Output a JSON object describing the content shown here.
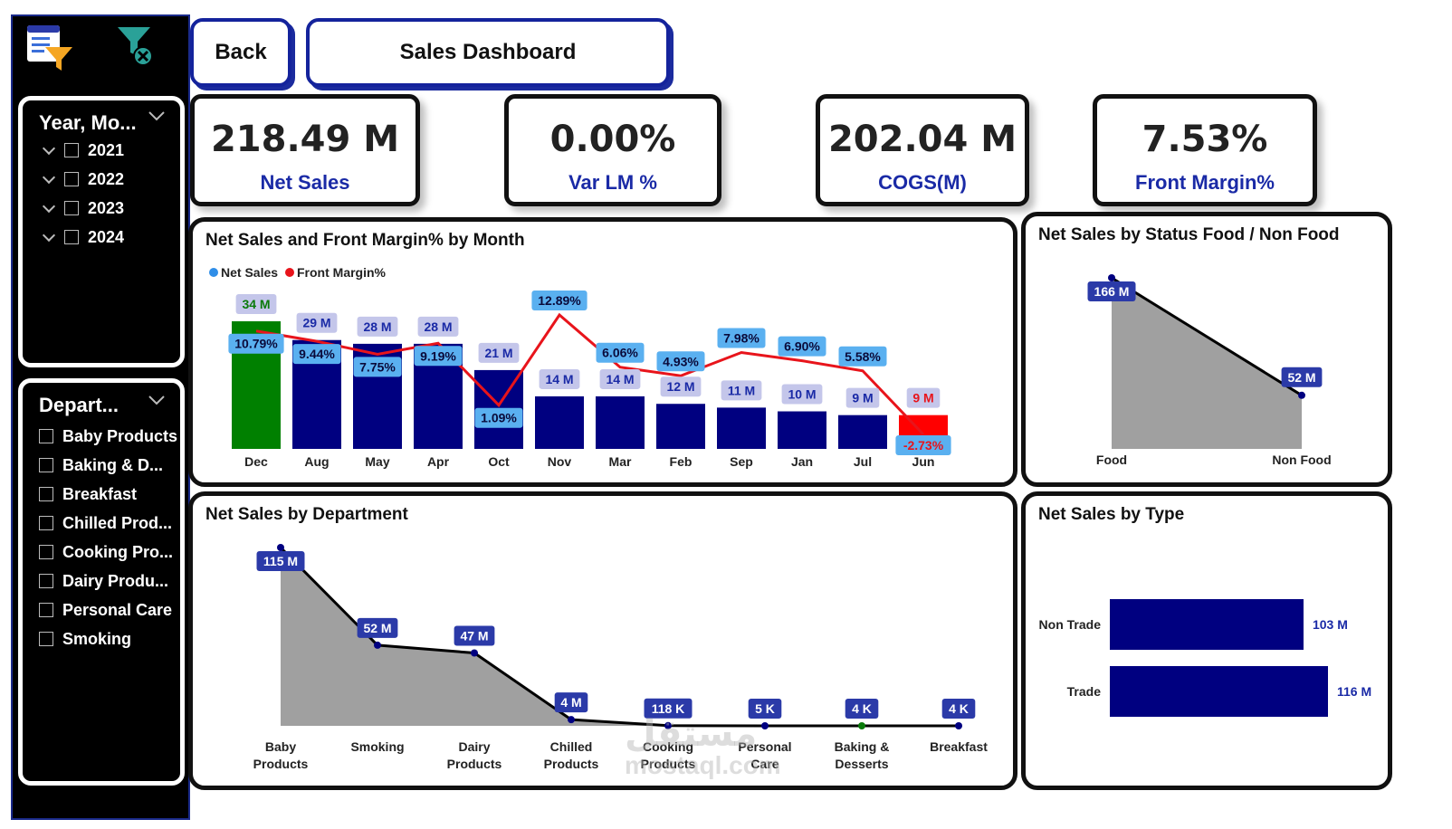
{
  "header": {
    "back_label": "Back",
    "title": "Sales Dashboard"
  },
  "sidebar": {
    "icons": [
      "report-filter-icon",
      "clear-filter-icon"
    ],
    "year_slicer": {
      "title": "Year, Mo...",
      "items": [
        "2021",
        "2022",
        "2023",
        "2024"
      ]
    },
    "dept_slicer": {
      "title": "Depart...",
      "items": [
        "Baby Products",
        "Baking & D...",
        "Breakfast",
        "Chilled Prod...",
        "Cooking Pro...",
        "Dairy Produ...",
        "Personal Care",
        "Smoking"
      ]
    }
  },
  "kpis": [
    {
      "value": "218.49 M",
      "label": "Net Sales"
    },
    {
      "value": "0.00%",
      "label": "Var LM %"
    },
    {
      "value": "202.04 M",
      "label": "COGS(M)"
    },
    {
      "value": "7.53%",
      "label": "Front Margin%"
    }
  ],
  "colors": {
    "bar": "#000080",
    "bar_max": "#008000",
    "bar_min": "#ff0000",
    "margin_line": "#e8141b",
    "area": "#a0a0a0",
    "label_bg": "#2b3aa8",
    "accent": "#1a2aa6"
  },
  "watermark": {
    "line1": "مستقل",
    "line2": "mostaql.com"
  },
  "chart_data": [
    {
      "type": "bar",
      "title": "Net Sales and Front Margin% by Month",
      "legend": [
        "Net Sales",
        "Front Margin%"
      ],
      "legend_position": "top-left",
      "categories": [
        "Dec",
        "Aug",
        "May",
        "Apr",
        "Oct",
        "Nov",
        "Mar",
        "Feb",
        "Sep",
        "Jan",
        "Jul",
        "Jun"
      ],
      "series": [
        {
          "name": "Net Sales",
          "values": [
            34,
            29,
            28,
            28,
            21,
            14,
            14,
            12,
            11,
            10,
            9,
            9
          ],
          "labels": [
            "34 M",
            "29 M",
            "28 M",
            "28 M",
            "21 M",
            "14 M",
            "14 M",
            "12 M",
            "11 M",
            "10 M",
            "9 M",
            "9 M"
          ]
        },
        {
          "name": "Front Margin%",
          "values": [
            10.79,
            9.44,
            7.75,
            9.19,
            1.09,
            12.89,
            6.06,
            4.93,
            7.98,
            6.9,
            5.58,
            -2.73
          ],
          "labels": [
            "10.79%",
            "9.44%",
            "7.75%",
            "9.19%",
            "1.09%",
            "12.89%",
            "6.06%",
            "4.93%",
            "7.98%",
            "6.90%",
            "5.58%",
            "-2.73%"
          ]
        }
      ]
    },
    {
      "type": "area",
      "title": "Net Sales by Status Food / Non Food",
      "categories": [
        "Food",
        "Non Food"
      ],
      "values": [
        166,
        52
      ],
      "labels": [
        "166 M",
        "52 M"
      ]
    },
    {
      "type": "area",
      "title": "Net Sales by Department",
      "categories": [
        "Baby Products",
        "Smoking",
        "Dairy Products",
        "Chilled Products",
        "Cooking Products",
        "Personal Care",
        "Baking & Desserts",
        "Breakfast"
      ],
      "values": [
        115,
        52,
        47,
        4,
        0.118,
        0.005,
        0.004,
        0.004
      ],
      "labels": [
        "115 M",
        "52 M",
        "47 M",
        "4 M",
        "118 K",
        "5 K",
        "4 K",
        "4 K"
      ]
    },
    {
      "type": "bar",
      "title": "Net Sales by Type",
      "categories": [
        "Non Trade",
        "Trade"
      ],
      "values": [
        103,
        116
      ],
      "labels": [
        "103 M",
        "116 M"
      ]
    }
  ]
}
